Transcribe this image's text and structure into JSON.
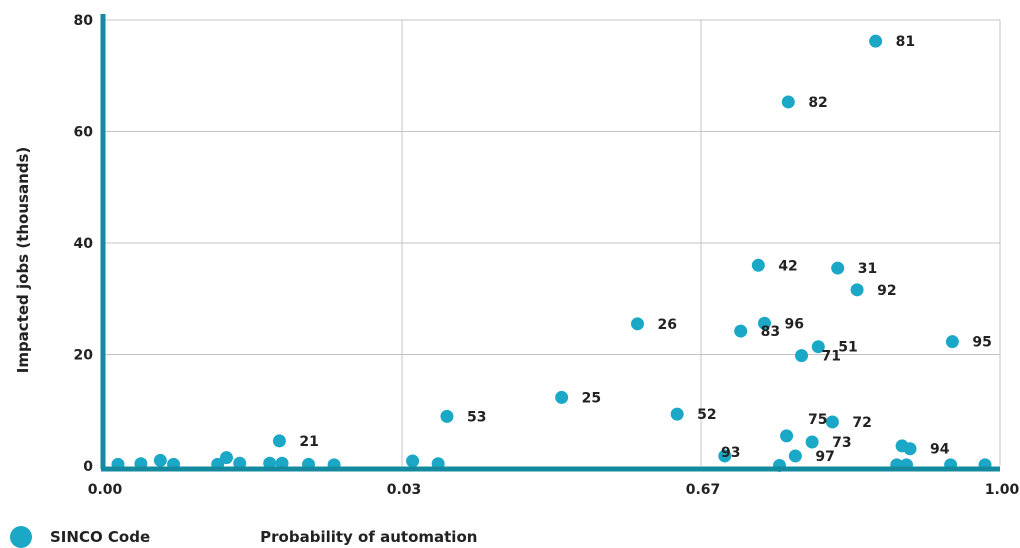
{
  "chart_data": {
    "type": "scatter",
    "xlabel": "Probability of automation",
    "ylabel": "Impacted jobs (thousands)",
    "x_tick_labels": [
      "0.00",
      "0.03",
      "0.67",
      "1.00"
    ],
    "y_ticks": [
      0,
      20,
      40,
      60,
      80
    ],
    "xlim": [
      0,
      1
    ],
    "ylim": [
      0,
      80
    ],
    "grid": true,
    "legend": {
      "label": "SINCO Code",
      "placement": "bottom-left"
    },
    "colors": {
      "marker": "#1ba8c6",
      "axis": "#148a9e",
      "grid": "#c4c4c4",
      "text": "#222222"
    },
    "series": [
      {
        "points": [
          {
            "x": 0.017,
            "y": 0.3
          },
          {
            "x": 0.043,
            "y": 0.4
          },
          {
            "x": 0.065,
            "y": 1.0
          },
          {
            "x": 0.08,
            "y": 0.3
          },
          {
            "x": 0.13,
            "y": 0.3
          },
          {
            "x": 0.14,
            "y": 1.5
          },
          {
            "x": 0.155,
            "y": 0.5
          },
          {
            "x": 0.189,
            "y": 0.5
          },
          {
            "x": 0.2,
            "y": 4.5,
            "label": "21"
          },
          {
            "x": 0.203,
            "y": 0.5
          },
          {
            "x": 0.233,
            "y": 0.3
          },
          {
            "x": 0.262,
            "y": 0.2
          },
          {
            "x": 0.351,
            "y": 0.9
          },
          {
            "x": 0.38,
            "y": 0.4
          },
          {
            "x": 0.39,
            "y": 8.9,
            "label": "53"
          },
          {
            "x": 0.52,
            "y": 12.3,
            "label": "25"
          },
          {
            "x": 0.606,
            "y": 25.5,
            "label": "26"
          },
          {
            "x": 0.651,
            "y": 9.3,
            "label": "52"
          },
          {
            "x": 0.705,
            "y": 1.8
          },
          {
            "x": 0.723,
            "y": 24.2,
            "label": "83"
          },
          {
            "x": 0.743,
            "y": 36.0,
            "label": "42"
          },
          {
            "x": 0.75,
            "y": 25.6,
            "label": "96"
          },
          {
            "x": 0.767,
            "y": 0.1
          },
          {
            "x": 0.775,
            "y": 5.4
          },
          {
            "x": 0.777,
            "y": 65.3,
            "label": "82"
          },
          {
            "x": 0.785,
            "y": 1.8,
            "label": "97"
          },
          {
            "x": 0.792,
            "y": 19.8,
            "label": "71"
          },
          {
            "x": 0.804,
            "y": 4.3,
            "label": "73"
          },
          {
            "x": 0.811,
            "y": 21.4,
            "label": "51"
          },
          {
            "x": 0.827,
            "y": 7.9,
            "label": "72"
          },
          {
            "x": 0.833,
            "y": 35.5,
            "label": "31"
          },
          {
            "x": 0.855,
            "y": 31.6,
            "label": "92"
          },
          {
            "x": 0.876,
            "y": 76.2,
            "label": "81"
          },
          {
            "x": 0.9,
            "y": 0.2
          },
          {
            "x": 0.906,
            "y": 3.6
          },
          {
            "x": 0.911,
            "y": 0.2
          },
          {
            "x": 0.915,
            "y": 3.1,
            "label": "94"
          },
          {
            "x": 0.961,
            "y": 0.2
          },
          {
            "x": 0.963,
            "y": 22.3,
            "label": "95"
          },
          {
            "x": 1.0,
            "y": 0.2
          }
        ]
      }
    ],
    "annotations": [
      {
        "text": "75"
      },
      {
        "text": "93"
      }
    ]
  }
}
